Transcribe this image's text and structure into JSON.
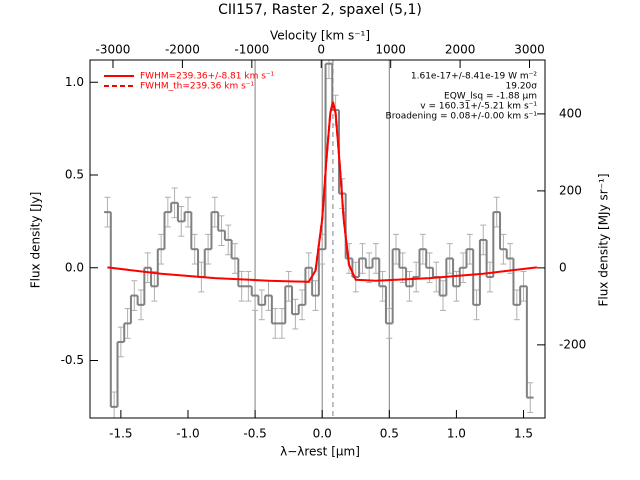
{
  "chart_data": {
    "type": "spectrum",
    "title": "CII157, Raster 2, spaxel (5,1)",
    "x_label": "λ−λrest [μm]",
    "y_label": "Flux density [Jy]",
    "x2_label": "Velocity [km s⁻¹]",
    "y2_label": "Flux density [MJy sr⁻¹]",
    "xlim": [
      -1.73,
      1.66
    ],
    "ylim": [
      -0.81,
      1.12
    ],
    "x2lim": [
      -3331,
      3223
    ],
    "y2lim": [
      -390,
      540
    ],
    "xticks": [
      -1.5,
      {
        "value": -1.0,
        "label": "-1.0"
      },
      -0.5,
      {
        "value": 0,
        "label": "0.0"
      },
      0.5,
      {
        "value": 1.0,
        "label": "1.0"
      },
      1.5
    ],
    "yticks": [
      -0.5,
      {
        "value": 0,
        "label": "0.0"
      },
      0.5,
      {
        "value": 1.0,
        "label": "1.0"
      }
    ],
    "x2ticks": [
      -3000,
      -2000,
      -1000,
      0,
      1000,
      2000,
      3000
    ],
    "y2ticks": [
      -200,
      0,
      200,
      400
    ],
    "vlines": [
      -0.5,
      0,
      0.5
    ],
    "center_line": 0.08,
    "annotations": [
      "1.61e-17+/-8.41e-19 W m⁻²",
      "19.20σ",
      "EQW_lsq = -1.88 μm",
      "v = 160.31+/-5.21 km s⁻¹",
      "Broadening = 0.08+/-0.00 km s⁻¹"
    ],
    "spectrum": {
      "color": "#808080",
      "step": 0.05,
      "x": [
        -1.6,
        -1.55,
        -1.5,
        -1.45,
        -1.4,
        -1.35,
        -1.3,
        -1.25,
        -1.2,
        -1.15,
        -1.1,
        -1.05,
        -1.0,
        -0.95,
        -0.9,
        -0.85,
        -0.8,
        -0.75,
        -0.7,
        -0.65,
        -0.6,
        -0.55,
        -0.5,
        -0.45,
        -0.4,
        -0.35,
        -0.3,
        -0.25,
        -0.2,
        -0.15,
        -0.1,
        -0.05,
        0.0,
        0.05,
        0.1,
        0.15,
        0.2,
        0.25,
        0.3,
        0.35,
        0.4,
        0.45,
        0.5,
        0.55,
        0.6,
        0.65,
        0.7,
        0.75,
        0.8,
        0.85,
        0.9,
        0.95,
        1.0,
        1.05,
        1.1,
        1.15,
        1.2,
        1.25,
        1.3,
        1.35,
        1.4,
        1.45,
        1.5,
        1.55
      ],
      "values": [
        0.3,
        -0.75,
        -0.4,
        -0.3,
        -0.15,
        -0.2,
        0.0,
        -0.1,
        0.1,
        0.3,
        0.35,
        0.25,
        0.3,
        0.1,
        -0.05,
        0.1,
        0.3,
        0.2,
        0.15,
        0.05,
        -0.1,
        -0.1,
        -0.15,
        -0.2,
        -0.15,
        -0.3,
        -0.3,
        -0.1,
        -0.25,
        -0.2,
        0.0,
        -0.15,
        0.1,
        1.1,
        0.85,
        0.4,
        0.05,
        -0.05,
        0.05,
        0.0,
        0.05,
        -0.1,
        -0.3,
        0.1,
        0.0,
        -0.1,
        -0.05,
        0.1,
        0.0,
        -0.05,
        -0.15,
        0.05,
        -0.1,
        0.0,
        0.1,
        -0.2,
        0.15,
        -0.05,
        0.3,
        0.1,
        0.05,
        -0.2,
        -0.1,
        -0.7
      ],
      "errors": [
        0.08,
        0.08,
        0.08,
        0.08,
        0.08,
        0.08,
        0.08,
        0.08,
        0.08,
        0.08,
        0.08,
        0.08,
        0.08,
        0.08,
        0.08,
        0.08,
        0.08,
        0.08,
        0.08,
        0.08,
        0.08,
        0.08,
        0.08,
        0.08,
        0.08,
        0.08,
        0.08,
        0.08,
        0.08,
        0.08,
        0.08,
        0.08,
        0.08,
        0.08,
        0.08,
        0.08,
        0.08,
        0.08,
        0.08,
        0.08,
        0.08,
        0.08,
        0.08,
        0.08,
        0.08,
        0.08,
        0.08,
        0.08,
        0.08,
        0.08,
        0.08,
        0.08,
        0.08,
        0.08,
        0.08,
        0.08,
        0.08,
        0.08,
        0.08,
        0.08,
        0.08,
        0.08,
        0.08,
        0.08
      ]
    },
    "series": [
      {
        "name": "FWHM=239.36+/-8.81 km s⁻¹",
        "color": "#ff0000",
        "dash": false,
        "x": [
          -1.6,
          -1.2,
          -0.8,
          -0.4,
          -0.2,
          -0.1,
          -0.05,
          0,
          0.03,
          0.06,
          0.08,
          0.1,
          0.13,
          0.16,
          0.2,
          0.25,
          0.4,
          0.8,
          1.2,
          1.6
        ],
        "values": [
          0.002,
          -0.032,
          -0.056,
          -0.07,
          -0.074,
          -0.075,
          -0.016,
          0.262,
          0.567,
          0.833,
          0.895,
          0.833,
          0.567,
          0.262,
          0.016,
          -0.065,
          -0.07,
          -0.056,
          -0.032,
          0.002
        ]
      },
      {
        "name": "FWHM_th=239.36 km s⁻¹",
        "color": "#ff0000",
        "dash": true,
        "x": [
          -0.05,
          0,
          0.03,
          0.06,
          0.08,
          0.1,
          0.13,
          0.16,
          0.2,
          0.25
        ],
        "values": [
          -0.016,
          0.262,
          0.567,
          0.833,
          0.895,
          0.833,
          0.567,
          0.262,
          0.016,
          -0.065
        ]
      }
    ]
  }
}
